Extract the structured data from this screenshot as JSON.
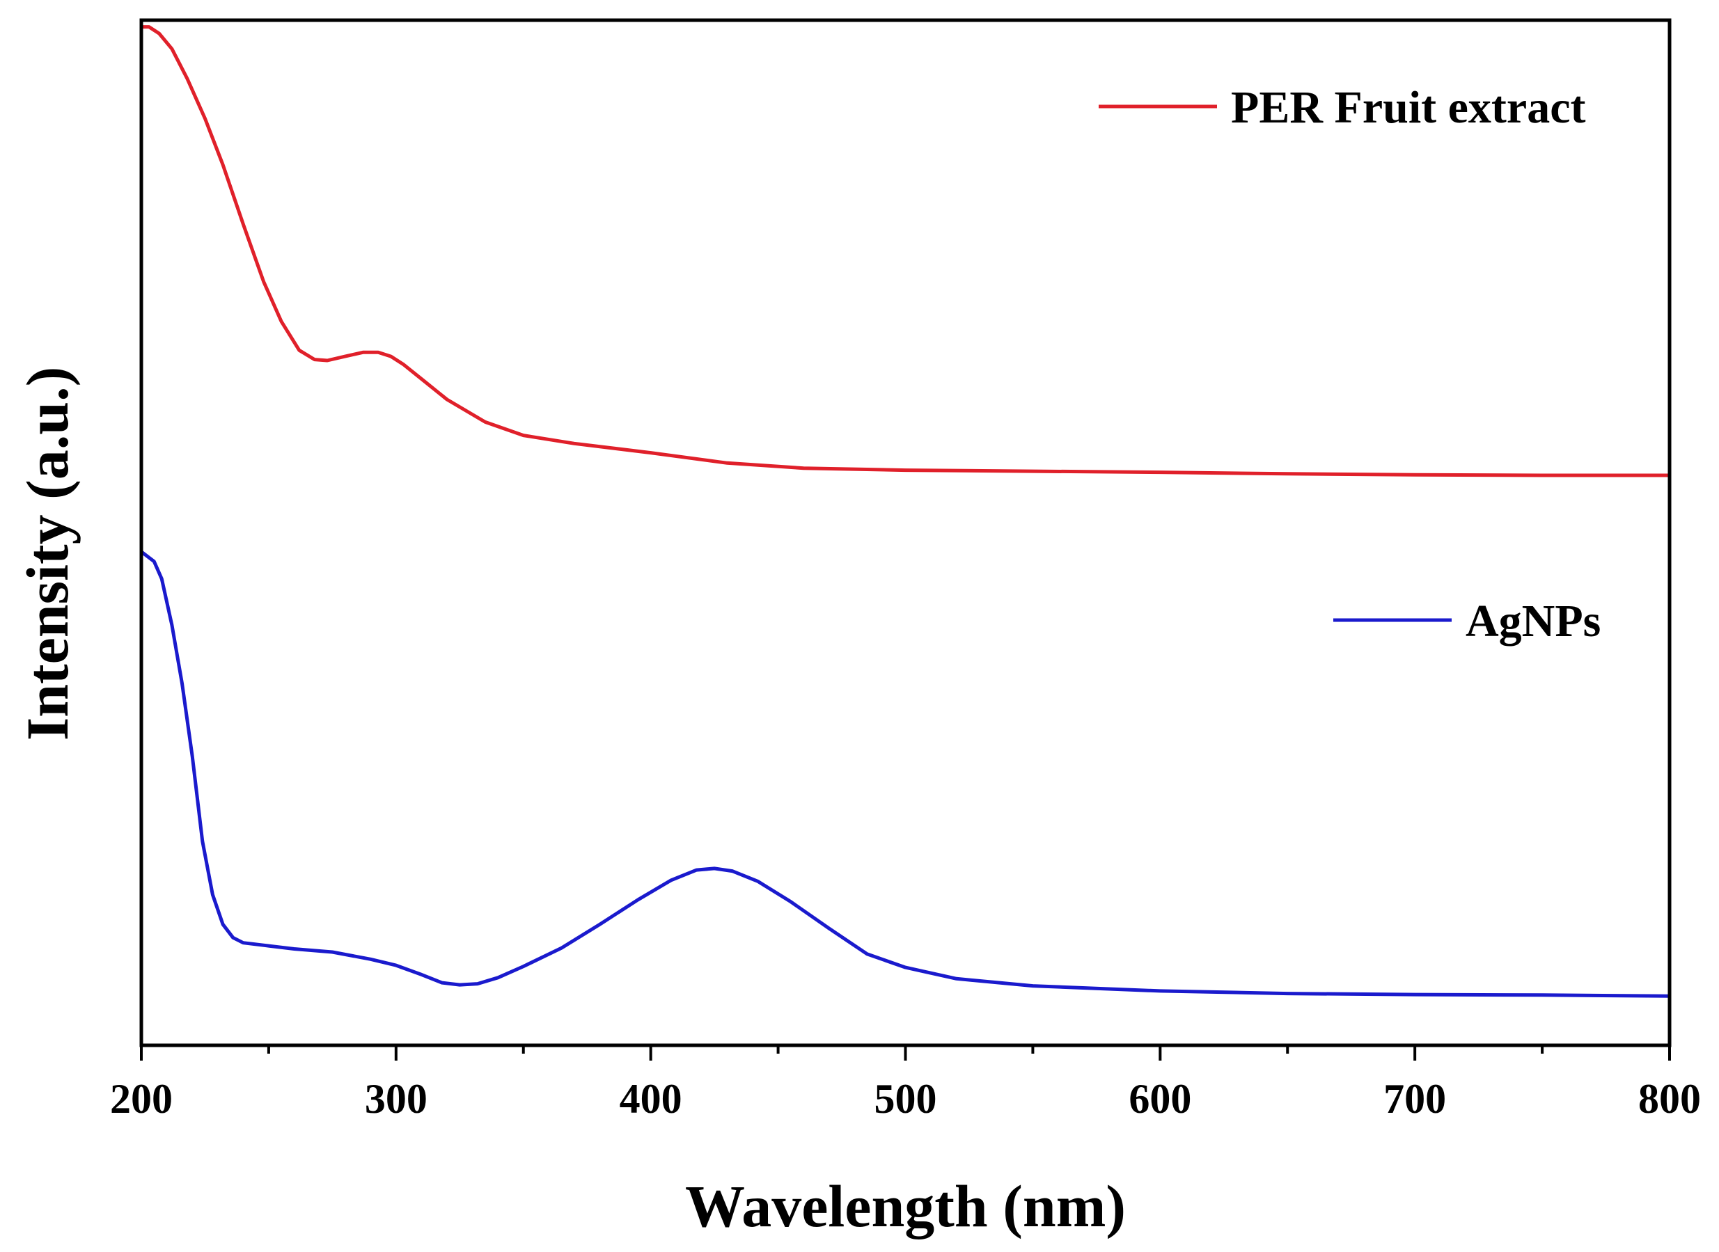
{
  "chart_data": {
    "type": "line",
    "title": "",
    "xlabel": "Wavelength (nm)",
    "ylabel": "Intensity (a.u.)",
    "xlim": [
      200,
      800
    ],
    "ylim": [
      0,
      1
    ],
    "x_ticks": [
      200,
      300,
      400,
      500,
      600,
      700,
      800
    ],
    "x_tick_labels": [
      "200",
      "300",
      "400",
      "500",
      "600",
      "700",
      "800"
    ],
    "y_ticks_shown": false,
    "grid": false,
    "legend": [
      {
        "label": "PER Fruit extract",
        "placement": "top-right"
      },
      {
        "label": "AgNPs",
        "placement": "middle-right"
      }
    ],
    "series": [
      {
        "name": "PER Fruit extract",
        "color": "#e0202a",
        "points": [
          [
            200,
            0.9935
          ],
          [
            203,
            0.9935
          ],
          [
            207,
            0.987
          ],
          [
            212,
            0.972
          ],
          [
            218,
            0.943
          ],
          [
            225,
            0.904
          ],
          [
            232,
            0.859
          ],
          [
            240,
            0.801
          ],
          [
            248,
            0.745
          ],
          [
            255,
            0.706
          ],
          [
            262,
            0.678
          ],
          [
            268,
            0.669
          ],
          [
            273,
            0.668
          ],
          [
            280,
            0.672
          ],
          [
            287,
            0.676
          ],
          [
            293,
            0.676
          ],
          [
            298,
            0.672
          ],
          [
            303,
            0.664
          ],
          [
            310,
            0.65
          ],
          [
            320,
            0.63
          ],
          [
            335,
            0.608
          ],
          [
            350,
            0.595
          ],
          [
            370,
            0.587
          ],
          [
            400,
            0.578
          ],
          [
            430,
            0.568
          ],
          [
            460,
            0.563
          ],
          [
            500,
            0.561
          ],
          [
            550,
            0.56
          ],
          [
            600,
            0.559
          ],
          [
            650,
            0.5575
          ],
          [
            700,
            0.5565
          ],
          [
            750,
            0.556
          ],
          [
            800,
            0.556
          ]
        ]
      },
      {
        "name": "AgNPs",
        "color": "#1a1acd",
        "points": [
          [
            200,
            0.4815
          ],
          [
            205,
            0.472
          ],
          [
            208,
            0.455
          ],
          [
            212,
            0.41
          ],
          [
            216,
            0.353
          ],
          [
            220,
            0.282
          ],
          [
            224,
            0.199
          ],
          [
            228,
            0.147
          ],
          [
            232,
            0.118
          ],
          [
            236,
            0.105
          ],
          [
            240,
            0.1
          ],
          [
            250,
            0.097
          ],
          [
            260,
            0.094
          ],
          [
            275,
            0.091
          ],
          [
            290,
            0.084
          ],
          [
            300,
            0.078
          ],
          [
            310,
            0.069
          ],
          [
            318,
            0.061
          ],
          [
            325,
            0.059
          ],
          [
            332,
            0.06
          ],
          [
            340,
            0.066
          ],
          [
            350,
            0.077
          ],
          [
            365,
            0.095
          ],
          [
            380,
            0.118
          ],
          [
            395,
            0.142
          ],
          [
            408,
            0.161
          ],
          [
            418,
            0.171
          ],
          [
            425,
            0.1725
          ],
          [
            432,
            0.17
          ],
          [
            442,
            0.16
          ],
          [
            455,
            0.14
          ],
          [
            470,
            0.114
          ],
          [
            485,
            0.089
          ],
          [
            500,
            0.076
          ],
          [
            520,
            0.065
          ],
          [
            550,
            0.058
          ],
          [
            600,
            0.053
          ],
          [
            650,
            0.0505
          ],
          [
            700,
            0.0495
          ],
          [
            750,
            0.049
          ],
          [
            800,
            0.048
          ]
        ]
      }
    ]
  }
}
